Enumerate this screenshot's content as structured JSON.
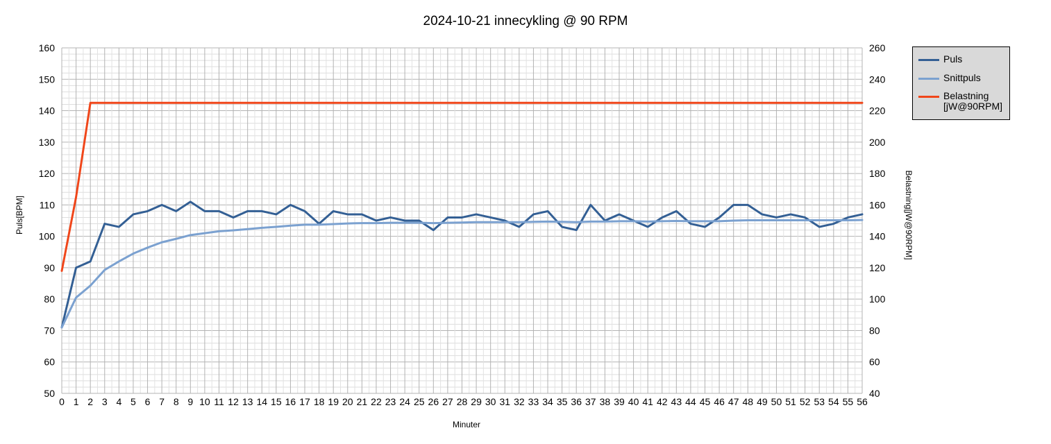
{
  "chart_data": {
    "type": "line",
    "title": "2024-10-21 innecykling @ 90 RPM",
    "xlabel": "Minuter",
    "ylabel_left": "Puls[BPM]",
    "ylabel_right": "Belastning[jW@90RPM]",
    "x": [
      0,
      1,
      2,
      3,
      4,
      5,
      6,
      7,
      8,
      9,
      10,
      11,
      12,
      13,
      14,
      15,
      16,
      17,
      18,
      19,
      20,
      21,
      22,
      23,
      24,
      25,
      26,
      27,
      28,
      29,
      30,
      31,
      32,
      33,
      34,
      35,
      36,
      37,
      38,
      39,
      40,
      41,
      42,
      43,
      44,
      45,
      46,
      47,
      48,
      49,
      50,
      51,
      52,
      53,
      54,
      55,
      56
    ],
    "xlim": [
      0,
      56
    ],
    "ylim_left": [
      50,
      160
    ],
    "ylim_right": [
      40,
      260
    ],
    "yticks_left": [
      50,
      60,
      70,
      80,
      90,
      100,
      110,
      120,
      130,
      140,
      150,
      160
    ],
    "yticks_right": [
      40,
      60,
      80,
      100,
      120,
      140,
      160,
      180,
      200,
      220,
      240,
      260
    ],
    "grid": true,
    "legend_position": "right",
    "series": [
      {
        "name": "Puls",
        "axis": "left",
        "color": "#335f94",
        "values": [
          71,
          90,
          92,
          104,
          103,
          107,
          108,
          110,
          108,
          111,
          108,
          108,
          106,
          108,
          108,
          107,
          110,
          108,
          104,
          108,
          107,
          107,
          105,
          106,
          105,
          105,
          102,
          106,
          106,
          107,
          106,
          105,
          103,
          107,
          108,
          103,
          102,
          110,
          105,
          107,
          105,
          103,
          106,
          108,
          104,
          103,
          106,
          110,
          110,
          107,
          106,
          107,
          106,
          103,
          104,
          106,
          107
        ]
      },
      {
        "name": "Snittpuls",
        "axis": "left",
        "color": "#7ba1d0",
        "values": [
          71,
          80.5,
          84.3,
          89.3,
          92.0,
          94.5,
          96.4,
          98.1,
          99.2,
          100.4,
          101.0,
          101.6,
          101.9,
          102.3,
          102.7,
          103.0,
          103.4,
          103.7,
          103.7,
          103.9,
          104.1,
          104.2,
          104.2,
          104.3,
          104.3,
          104.3,
          104.2,
          104.3,
          104.4,
          104.5,
          104.5,
          104.5,
          104.5,
          104.6,
          104.7,
          104.6,
          104.5,
          104.7,
          104.7,
          104.8,
          104.8,
          104.7,
          104.8,
          104.9,
          104.8,
          104.8,
          104.8,
          105.0,
          105.1,
          105.1,
          105.1,
          105.1,
          105.1,
          105.1,
          105.1,
          105.1,
          105.2
        ]
      },
      {
        "name": "Belastning [jW@90RPM]",
        "axis": "right",
        "color": "#f0461a",
        "values": [
          118,
          165,
          225,
          225,
          225,
          225,
          225,
          225,
          225,
          225,
          225,
          225,
          225,
          225,
          225,
          225,
          225,
          225,
          225,
          225,
          225,
          225,
          225,
          225,
          225,
          225,
          225,
          225,
          225,
          225,
          225,
          225,
          225,
          225,
          225,
          225,
          225,
          225,
          225,
          225,
          225,
          225,
          225,
          225,
          225,
          225,
          225,
          225,
          225,
          225,
          225,
          225,
          225,
          225,
          225,
          225,
          225
        ]
      }
    ]
  }
}
